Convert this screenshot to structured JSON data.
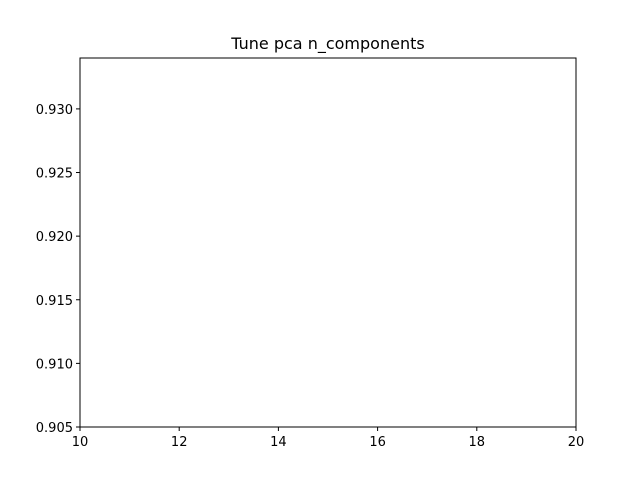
{
  "chart_data": {
    "type": "line",
    "title": "Tune pca n_components",
    "xlabel": "",
    "ylabel": "",
    "xlim": [
      10,
      20
    ],
    "ylim": [
      0.905,
      0.934
    ],
    "x_ticks": [
      "10",
      "12",
      "14",
      "16",
      "18",
      "20"
    ],
    "y_ticks": [
      "0.905",
      "0.910",
      "0.915",
      "0.920",
      "0.925",
      "0.930"
    ],
    "grid": false,
    "series": []
  }
}
